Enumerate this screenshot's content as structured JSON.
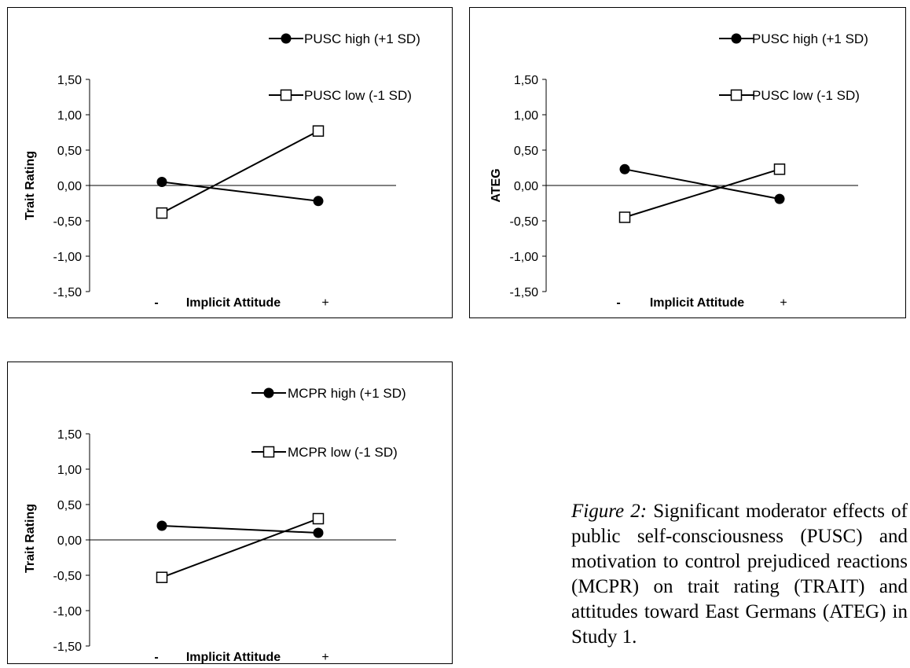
{
  "chart_data": [
    {
      "type": "line",
      "ylabel": "Trait Rating",
      "xlabel": "Implicit Attitude",
      "x_low_label": "-",
      "x_high_label": "+",
      "yticks": [
        "1,50",
        "1,00",
        "0,50",
        "0,00",
        "-0,50",
        "-1,00",
        "-1,50"
      ],
      "ylim": [
        -1.5,
        1.5
      ],
      "legend_position": "top-right",
      "series": [
        {
          "name": "PUSC high (+1 SD)",
          "marker": "filled-circle",
          "values": [
            0.05,
            -0.22
          ]
        },
        {
          "name": "PUSC low (-1 SD)",
          "marker": "open-square",
          "values": [
            -0.39,
            0.77
          ]
        }
      ]
    },
    {
      "type": "line",
      "ylabel": "ATEG",
      "xlabel": "Implicit Attitude",
      "x_low_label": "-",
      "x_high_label": "+",
      "yticks": [
        "1,50",
        "1,00",
        "0,50",
        "0,00",
        "-0,50",
        "-1,00",
        "-1,50"
      ],
      "ylim": [
        -1.5,
        1.5
      ],
      "legend_position": "top-right",
      "series": [
        {
          "name": "PUSC high (+1 SD)",
          "marker": "filled-circle",
          "values": [
            0.23,
            -0.19
          ]
        },
        {
          "name": "PUSC low (-1 SD)",
          "marker": "open-square",
          "values": [
            -0.45,
            0.23
          ]
        }
      ]
    },
    {
      "type": "line",
      "ylabel": "Trait Rating",
      "xlabel": "Implicit Attitude",
      "x_low_label": "-",
      "x_high_label": "+",
      "yticks": [
        "1,50",
        "1,00",
        "0,50",
        "0,00",
        "-0,50",
        "-1,00",
        "-1,50"
      ],
      "ylim": [
        -1.5,
        1.5
      ],
      "legend_position": "top-right",
      "series": [
        {
          "name": "MCPR high (+1 SD)",
          "marker": "filled-circle",
          "values": [
            0.2,
            0.1
          ]
        },
        {
          "name": "MCPR low (-1 SD)",
          "marker": "open-square",
          "values": [
            -0.53,
            0.3
          ]
        }
      ]
    }
  ],
  "caption": {
    "label": "Figure 2:",
    "text": "Significant moderator effects of public self-consciousness (PUSC) and motivation to control prejudiced reactions (MCPR) on trait rating (TRAIT) and attitudes toward East Germans (ATEG) in Study 1."
  }
}
